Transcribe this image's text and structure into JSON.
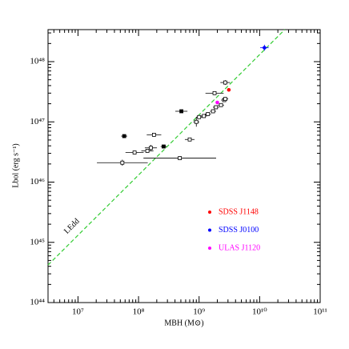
{
  "chart_data": {
    "type": "scatter",
    "xlabel": "MBH (M⊙)",
    "ylabel": "Lbol (erg s⁻¹)",
    "annotation": "LEdd",
    "log_x": true,
    "log_y": true,
    "xlim": [
      3200000,
      100000000000
    ],
    "ylim": [
      1e+44,
      3.4e+48
    ],
    "xticks": [
      {
        "value": 10000000,
        "label": "10⁷"
      },
      {
        "value": 100000000,
        "label": "10⁸"
      },
      {
        "value": 1000000000,
        "label": "10⁹"
      },
      {
        "value": 10000000000,
        "label": "10¹⁰"
      },
      {
        "value": 100000000000,
        "label": "10¹¹"
      }
    ],
    "yticks": [
      {
        "value": 1e+44,
        "label": "10⁴⁴"
      },
      {
        "value": 1e+45,
        "label": "10⁴⁵"
      },
      {
        "value": 1e+46,
        "label": "10⁴⁶"
      },
      {
        "value": 1e+47,
        "label": "10⁴⁷"
      },
      {
        "value": 1e+48,
        "label": "10⁴⁸"
      }
    ],
    "eddington_line": {
      "color": "#33cc33",
      "x": [
        3200000,
        26000000000
      ],
      "y": [
        4.2e+44,
        3.4e+48
      ]
    },
    "points": {
      "color": "#000000",
      "x": [
        54000000,
        480000000,
        86000000,
        140000000,
        160000000,
        260000000,
        180000000,
        58000000,
        700000000,
        510000000,
        900000000,
        1000000000,
        1200000000,
        1400000000,
        1700000000,
        1900000000,
        2300000000,
        2600000000,
        1800000000,
        2700000000,
        2700000000
      ],
      "y": [
        2.1e+46,
        2.5e+46,
        3.1e+46,
        3.3e+46,
        3.7e+46,
        3.9e+46,
        6.1e+46,
        5.8e+46,
        5.1e+46,
        1.5e+47,
        1e+47,
        1.2e+47,
        1.25e+47,
        1.35e+47,
        1.5e+47,
        1.75e+47,
        1.9e+47,
        2.3e+47,
        3e+47,
        4.5e+47,
        2.4e+47
      ],
      "xerr": [
        0.42,
        0.6,
        0.15,
        0.1,
        0.1,
        0.05,
        0.12,
        0.05,
        0.08,
        0.1,
        0.05,
        0.05,
        0.05,
        0.05,
        0.05,
        0.05,
        0.05,
        0.05,
        0.15,
        0.08,
        0.05
      ],
      "yerr": [
        0.05,
        0.03,
        0.03,
        0.03,
        0.05,
        0.02,
        0.03,
        0.02,
        0.03,
        0.02,
        0.08,
        0.03,
        0.03,
        0.03,
        0.03,
        0.03,
        0.03,
        0.03,
        0.03,
        0.04,
        0.03
      ],
      "filled": [
        false,
        false,
        false,
        false,
        false,
        true,
        false,
        true,
        false,
        true,
        false,
        false,
        false,
        false,
        false,
        false,
        false,
        false,
        false,
        false,
        false
      ]
    },
    "series": [
      {
        "name": "SDSS J1148",
        "color": "#ff0000",
        "x": [
          3100000000
        ],
        "y": [
          3.4e+47
        ]
      },
      {
        "name": "SDSS J0100",
        "color": "#0000ff",
        "x": [
          12000000000
        ],
        "y": [
          1.7e+48
        ],
        "xerr": [
          0.07
        ],
        "yerr": [
          0.05
        ]
      },
      {
        "name": "ULAS J1120",
        "color": "#ff00ff",
        "x": [
          2000000000
        ],
        "y": [
          2.1e+47
        ]
      }
    ]
  }
}
